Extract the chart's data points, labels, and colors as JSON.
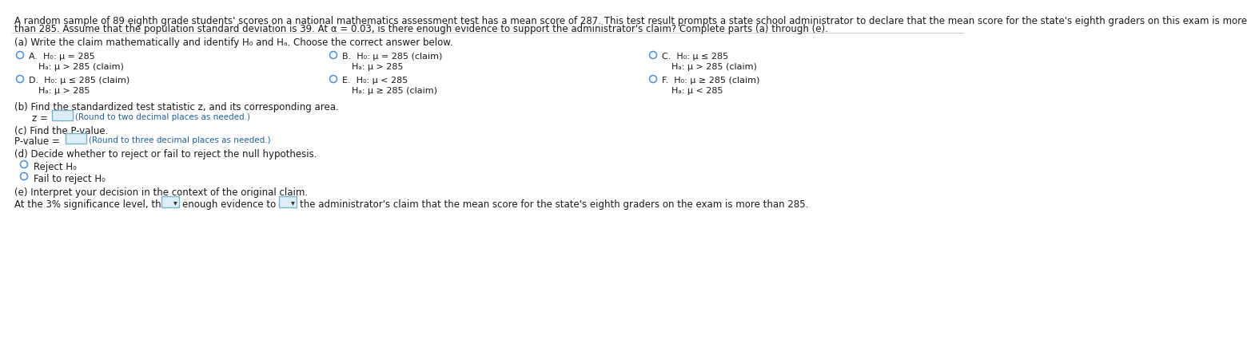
{
  "background_color": "#ffffff",
  "header_line1": "A random sample of 89 eighth grade students' scores on a national mathematics assessment test has a mean score of 287. This test result prompts a state school administrator to declare that the mean score for the state's eighth graders on this exam is more",
  "header_line2": "than 285. Assume that the population standard deviation is 39. At α = 0.03, is there enough evidence to support the administrator's claim? Complete parts (a) through (e).",
  "part_a_label": "(a) Write the claim mathematically and identify H₀ and Hₐ. Choose the correct answer below.",
  "part_b_label": "(b) Find the standardized test statistic z, and its corresponding area.",
  "part_c_label": "(c) Find the P-value.",
  "part_d_label": "(d) Decide whether to reject or fail to reject the null hypothesis.",
  "part_e_label": "(e) Interpret your decision in the context of the original claim.",
  "part_e_sentence1": "At the 3% significance level, there",
  "part_e_sentence2": "enough evidence to",
  "part_e_sentence3": "the administrator's claim that the mean score for the state's eighth graders on the exam is more than 285.",
  "z_round": "(Round to two decimal places as needed.)",
  "pval_round": "(Round to three decimal places as needed.)",
  "opt_d1": "Reject H₀",
  "opt_d2": "Fail to reject H₀",
  "optA_h0": "H₀: μ = 285",
  "optA_ha": "Hₐ: μ > 285 (claim)",
  "optB_h0": "H₀: μ = 285 (claim)",
  "optB_ha": "Hₐ: μ > 285",
  "optC_h0": "H₀: μ ≤ 285",
  "optC_ha": "Hₐ: μ > 285 (claim)",
  "optD_h0": "H₀: μ ≤ 285 (claim)",
  "optD_ha": "Hₐ: μ > 285",
  "optE_h0": "H₀: μ < 285",
  "optE_ha": "Hₐ: μ ≥ 285 (claim)",
  "optF_h0": "H₀: μ ≥ 285 (claim)",
  "optF_ha": "Hₐ: μ < 285",
  "text_color": "#1a1a1a",
  "blue_color": "#1a5fa8",
  "orange_color": "#b8860b",
  "circle_edge": "#4a90d9",
  "box_edge": "#7ab3d0",
  "box_face": "#ddeef7",
  "sep_color": "#cccccc",
  "round_note_color": "#2060a0"
}
